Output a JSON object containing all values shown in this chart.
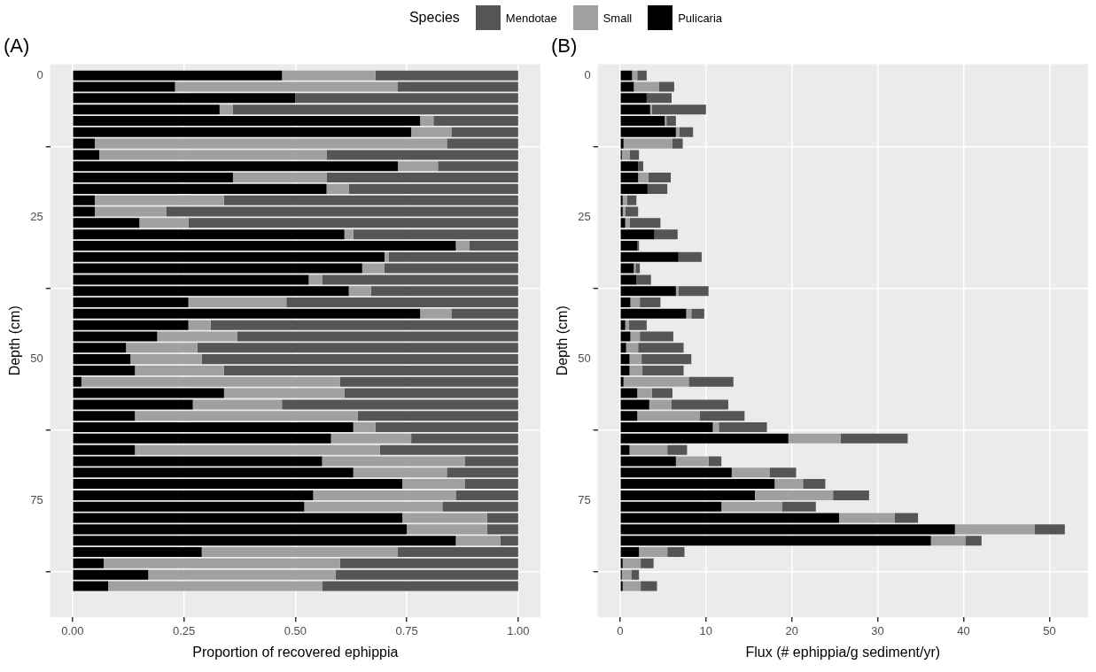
{
  "chart_data": [
    {
      "type": "bar",
      "title": "(A)",
      "xlabel": "Proportion of recovered ephippia",
      "ylabel": "Depth (cm)",
      "legend_title": "Species",
      "orientation": "horizontal",
      "stacked": true,
      "legend": "top",
      "grid": true,
      "x": [
        0,
        2,
        4,
        6,
        8,
        10,
        12,
        14,
        16,
        18,
        20,
        22,
        24,
        26,
        28,
        30,
        32,
        34,
        36,
        38,
        40,
        42,
        44,
        46,
        48,
        50,
        52,
        54,
        56,
        58,
        60,
        62,
        64,
        66,
        68,
        70,
        72,
        74,
        76,
        78,
        80,
        82,
        84,
        86,
        88,
        90
      ],
      "xlim": [
        -0.05,
        1.05
      ],
      "xticks": [
        {
          "value": 0,
          "label": "0.00"
        },
        {
          "value": 0.25,
          "label": "0.25"
        },
        {
          "value": 0.5,
          "label": "0.50"
        },
        {
          "value": 0.75,
          "label": "0.75"
        },
        {
          "value": 1,
          "label": "1.00"
        }
      ],
      "ylim": [
        95.5,
        -2
      ],
      "yticks": [
        0,
        25,
        50,
        75
      ],
      "series": [
        {
          "name": "Pulicaria",
          "color": "#000000",
          "values": [
            0.47,
            0.23,
            0.5,
            0.33,
            0.78,
            0.76,
            0.05,
            0.06,
            0.73,
            0.36,
            0.57,
            0.05,
            0.05,
            0.15,
            0.61,
            0.86,
            0.7,
            0.65,
            0.53,
            0.62,
            0.26,
            0.78,
            0.26,
            0.19,
            0.12,
            0.13,
            0.14,
            0.02,
            0.34,
            0.27,
            0.14,
            0.63,
            0.58,
            0.14,
            0.56,
            0.63,
            0.74,
            0.54,
            0.52,
            0.74,
            0.75,
            0.86,
            0.29,
            0.07,
            0.17,
            0.08
          ]
        },
        {
          "name": "Small",
          "color": "#a0a0a0",
          "values": [
            0.21,
            0.5,
            0,
            0.03,
            0.03,
            0.09,
            0.79,
            0.51,
            0.09,
            0.21,
            0.05,
            0.29,
            0.16,
            0.11,
            0.02,
            0.03,
            0.01,
            0.05,
            0.03,
            0.05,
            0.22,
            0.07,
            0.05,
            0.18,
            0.16,
            0.16,
            0.2,
            0.58,
            0.27,
            0.2,
            0.5,
            0.05,
            0.18,
            0.55,
            0.32,
            0.21,
            0.14,
            0.32,
            0.31,
            0.19,
            0.18,
            0.1,
            0.44,
            0.53,
            0.42,
            0.48
          ]
        },
        {
          "name": "Mendotae",
          "color": "#555555",
          "values": [
            0.32,
            0.27,
            0.5,
            0.64,
            0.19,
            0.15,
            0.16,
            0.43,
            0.18,
            0.43,
            0.38,
            0.66,
            0.79,
            0.74,
            0.37,
            0.11,
            0.29,
            0.3,
            0.44,
            0.33,
            0.52,
            0.15,
            0.69,
            0.63,
            0.72,
            0.71,
            0.66,
            0.4,
            0.39,
            0.53,
            0.36,
            0.32,
            0.24,
            0.31,
            0.12,
            0.16,
            0.12,
            0.14,
            0.17,
            0.07,
            0.07,
            0.04,
            0.27,
            0.4,
            0.41,
            0.44
          ]
        }
      ]
    },
    {
      "type": "bar",
      "title": "(B)",
      "xlabel": "Flux (# ephippia/g sediment/yr)",
      "ylabel": "Depth (cm)",
      "orientation": "horizontal",
      "stacked": true,
      "grid": true,
      "x": [
        0,
        2,
        4,
        6,
        8,
        10,
        12,
        14,
        16,
        18,
        20,
        22,
        24,
        26,
        28,
        30,
        32,
        34,
        36,
        38,
        40,
        42,
        44,
        46,
        48,
        50,
        52,
        54,
        56,
        58,
        60,
        62,
        64,
        66,
        68,
        70,
        72,
        74,
        76,
        78,
        80,
        82,
        84,
        86,
        88,
        90
      ],
      "xlim": [
        -2.6,
        54.5
      ],
      "xticks": [
        0,
        10,
        20,
        30,
        40,
        50
      ],
      "ylim": [
        95.5,
        -2
      ],
      "yticks": [
        0,
        25,
        50,
        75
      ],
      "series": [
        {
          "color": "#000000",
          "values": [
            1.4,
            1.6,
            3.1,
            3.5,
            5.2,
            6.5,
            0.4,
            0.2,
            2.1,
            2.1,
            3.2,
            0.3,
            0.3,
            0.6,
            4.0,
            2.0,
            6.8,
            1.6,
            1.9,
            6.5,
            1.2,
            7.7,
            0.6,
            1.2,
            0.7,
            1.1,
            1.1,
            0.4,
            2.0,
            3.4,
            2.0,
            10.8,
            19.6,
            1.1,
            6.5,
            13.0,
            18.0,
            15.7,
            11.8,
            25.5,
            39.0,
            36.2,
            2.2,
            0.3,
            0.2,
            0.3
          ]
        },
        {
          "color": "#a0a0a0",
          "values": [
            0.6,
            2.9,
            null,
            0.2,
            0.2,
            0.4,
            5.7,
            0.9,
            null,
            1.2,
            null,
            0.5,
            0.3,
            0.5,
            null,
            null,
            null,
            0.2,
            null,
            0.3,
            1.1,
            0.6,
            0.4,
            1.1,
            1.4,
            1.4,
            1.5,
            7.6,
            1.7,
            2.6,
            7.3,
            0.7,
            6.1,
            4.4,
            3.8,
            4.4,
            3.3,
            9.1,
            7.1,
            6.5,
            9.3,
            4.0,
            3.3,
            2.1,
            1.1,
            2.1
          ]
        },
        {
          "color": "#555555",
          "values": [
            1.1,
            1.8,
            2.9,
            6.3,
            1.1,
            1.6,
            1.2,
            1.1,
            0.6,
            2.6,
            2.3,
            1.1,
            1.5,
            3.6,
            2.7,
            0.2,
            2.7,
            0.5,
            1.7,
            3.5,
            2.4,
            1.5,
            2.1,
            3.9,
            5.3,
            5.8,
            4.8,
            5.2,
            2.4,
            6.6,
            5.2,
            5.6,
            7.8,
            2.3,
            1.5,
            3.1,
            2.6,
            4.2,
            3.9,
            2.7,
            3.5,
            1.9,
            2.0,
            1.5,
            0.9,
            1.9
          ]
        }
      ]
    }
  ]
}
